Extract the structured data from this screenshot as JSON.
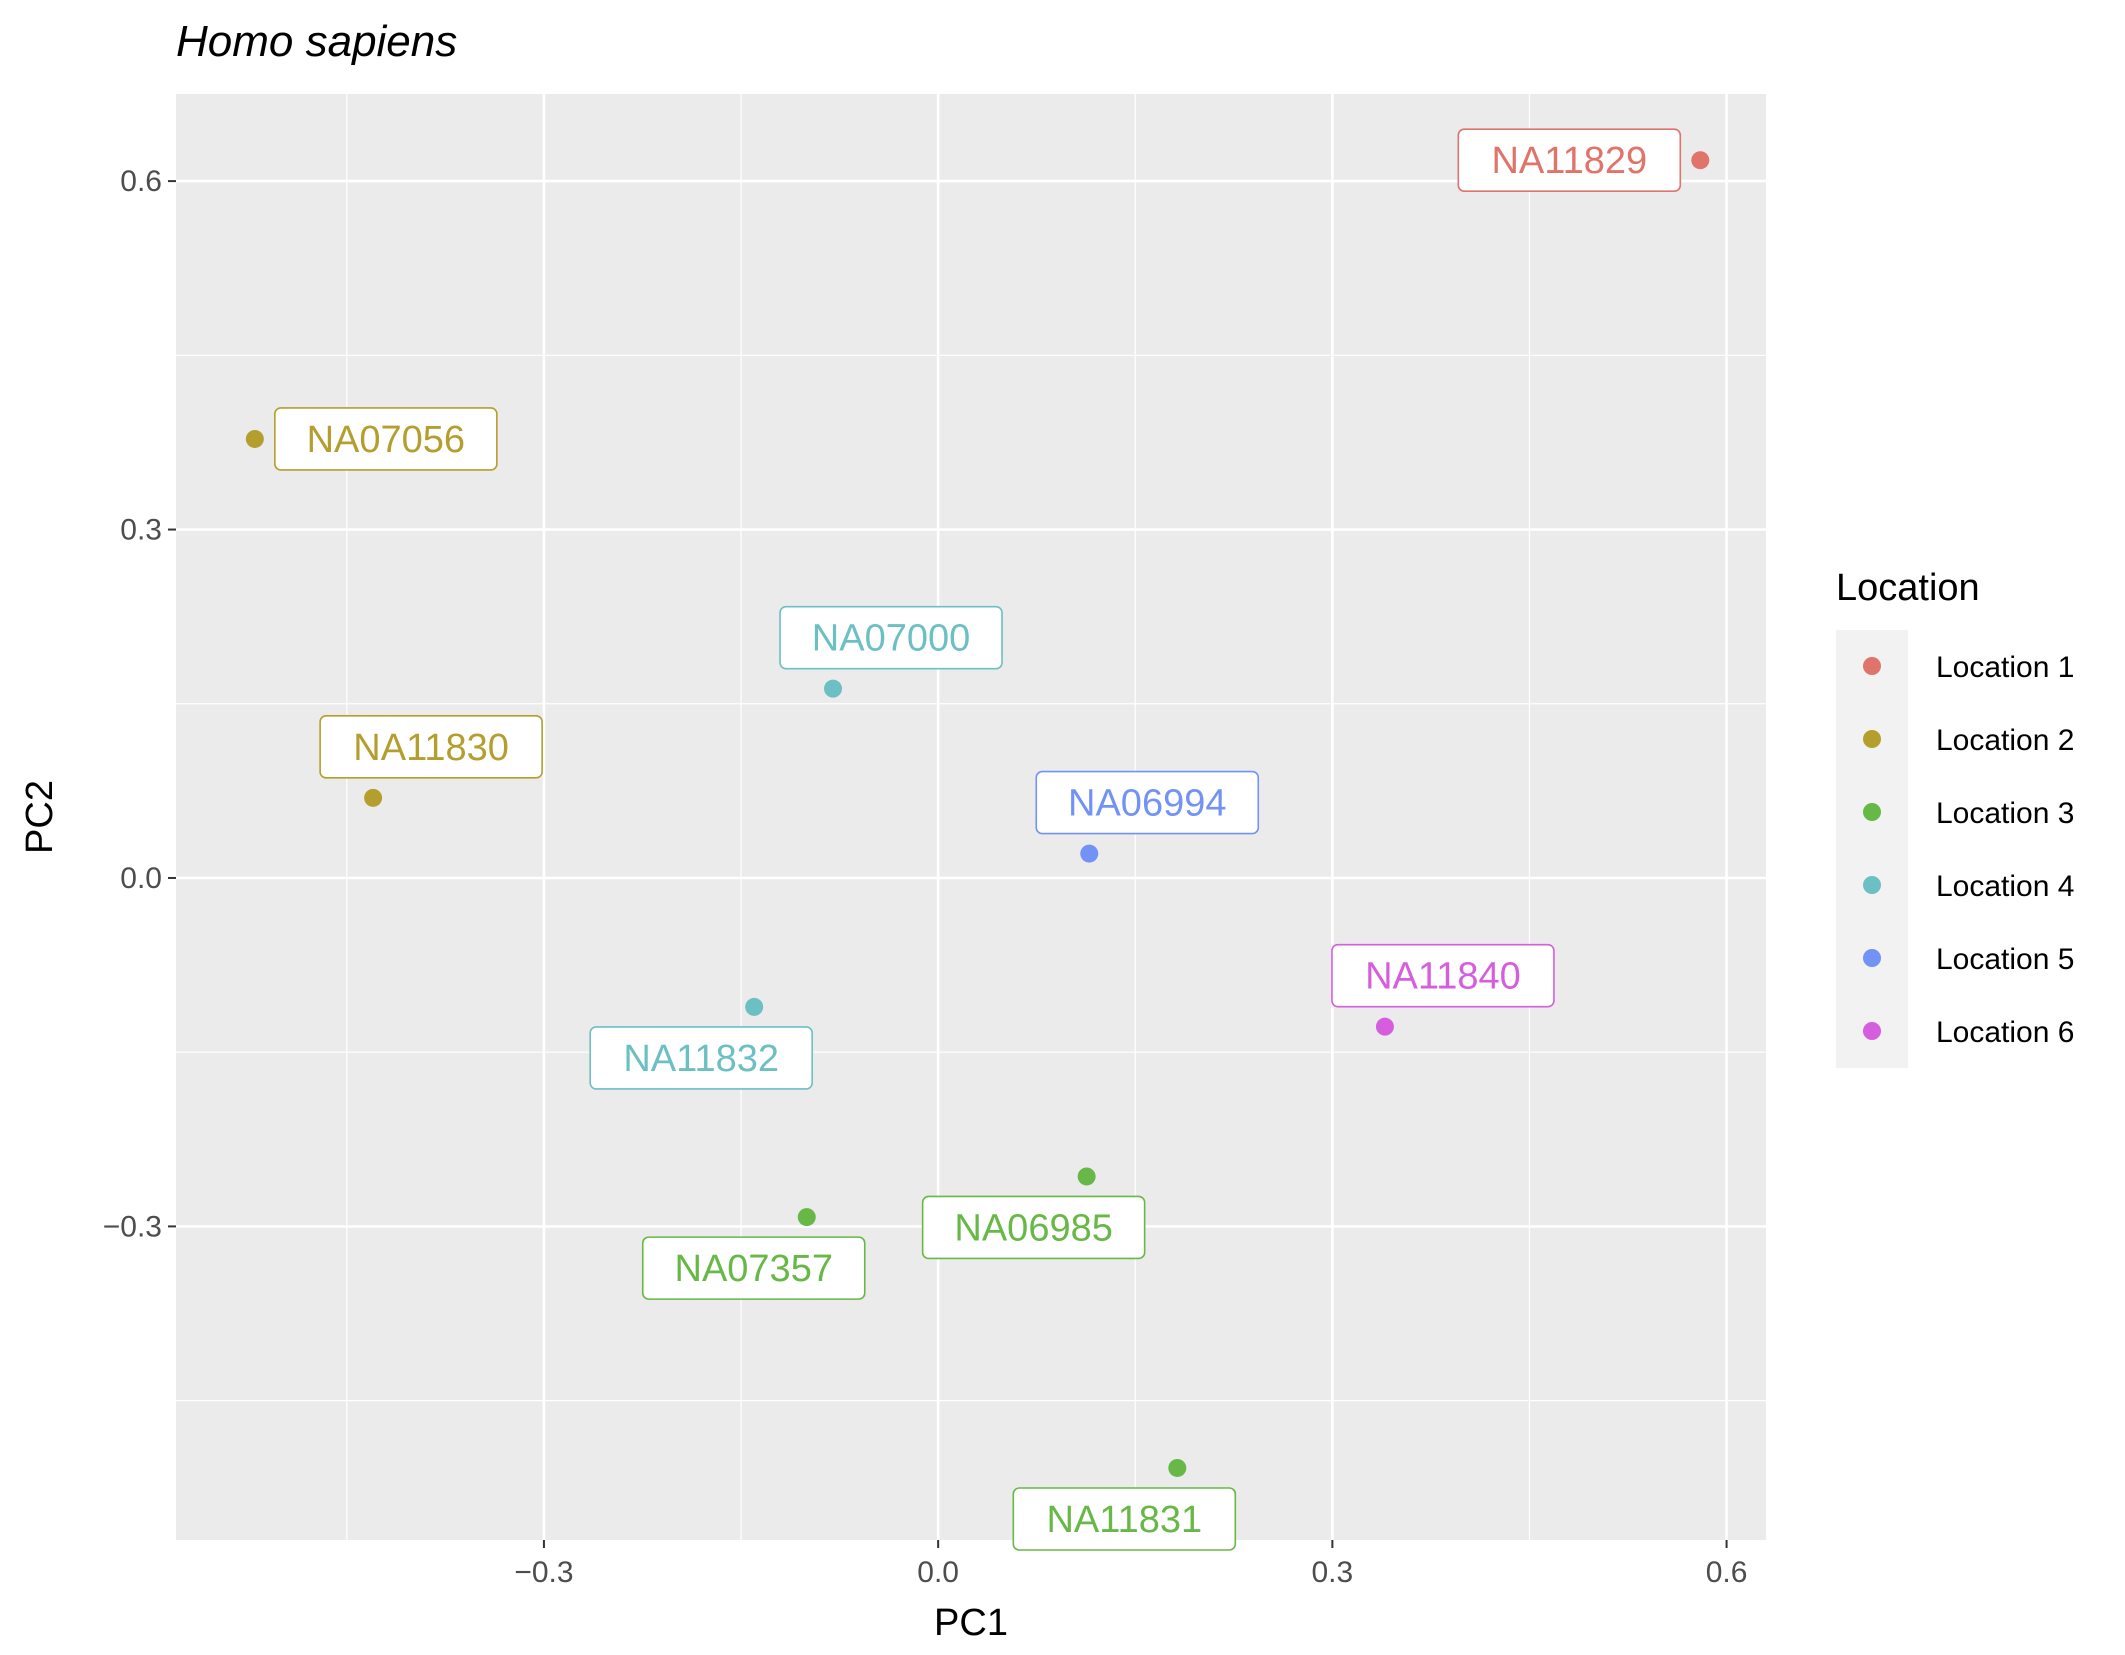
{
  "chart_data": {
    "type": "scatter",
    "title": "Homo sapiens",
    "xlabel": "PC1",
    "ylabel": "PC2",
    "xlim": [
      -0.58,
      0.63
    ],
    "ylim": [
      -0.57,
      0.675
    ],
    "x_ticks": [
      -0.3,
      0.0,
      0.3,
      0.6
    ],
    "x_tick_labels": [
      "−0.3",
      "0.0",
      "0.3",
      "0.6"
    ],
    "x_minor": [
      -0.45,
      -0.15,
      0.15,
      0.45
    ],
    "y_ticks": [
      -0.3,
      0.0,
      0.3,
      0.6
    ],
    "y_tick_labels": [
      "−0.3",
      "0.0",
      "0.3",
      "0.6"
    ],
    "y_minor": [
      -0.45,
      -0.15,
      0.15,
      0.45
    ],
    "grid": true,
    "legend": {
      "title": "Location",
      "placement": "right",
      "entries": [
        {
          "label": "Location 1",
          "color": "#E0736A"
        },
        {
          "label": "Location 2",
          "color": "#B49E2E"
        },
        {
          "label": "Location 3",
          "color": "#67B846"
        },
        {
          "label": "Location 4",
          "color": "#6CBFC3"
        },
        {
          "label": "Location 5",
          "color": "#7293F5"
        },
        {
          "label": "Location 6",
          "color": "#D65EDE"
        }
      ]
    },
    "points": [
      {
        "label": "NA11829",
        "x": 0.58,
        "y": 0.618,
        "location": "Location 1",
        "color": "#E0736A",
        "label_side": "left"
      },
      {
        "label": "NA07056",
        "x": -0.52,
        "y": 0.378,
        "location": "Location 2",
        "color": "#B49E2E",
        "label_side": "right"
      },
      {
        "label": "NA11830",
        "x": -0.43,
        "y": 0.069,
        "location": "Location 2",
        "color": "#B49E2E",
        "label_side": "above"
      },
      {
        "label": "NA07000",
        "x": -0.08,
        "y": 0.163,
        "location": "Location 4",
        "color": "#6CBFC3",
        "label_side": "above"
      },
      {
        "label": "NA11832",
        "x": -0.14,
        "y": -0.111,
        "location": "Location 4",
        "color": "#6CBFC3",
        "label_side": "below-left"
      },
      {
        "label": "NA06994",
        "x": 0.115,
        "y": 0.021,
        "location": "Location 5",
        "color": "#7293F5",
        "label_side": "above"
      },
      {
        "label": "NA11840",
        "x": 0.34,
        "y": -0.128,
        "location": "Location 6",
        "color": "#D65EDE",
        "label_side": "above"
      },
      {
        "label": "NA06985",
        "x": 0.113,
        "y": -0.257,
        "location": "Location 3",
        "color": "#67B846",
        "label_side": "below-left"
      },
      {
        "label": "NA07357",
        "x": -0.1,
        "y": -0.292,
        "location": "Location 3",
        "color": "#67B846",
        "label_side": "below-left"
      },
      {
        "label": "NA11831",
        "x": 0.182,
        "y": -0.508,
        "location": "Location 3",
        "color": "#67B846",
        "label_side": "below-left"
      }
    ]
  }
}
